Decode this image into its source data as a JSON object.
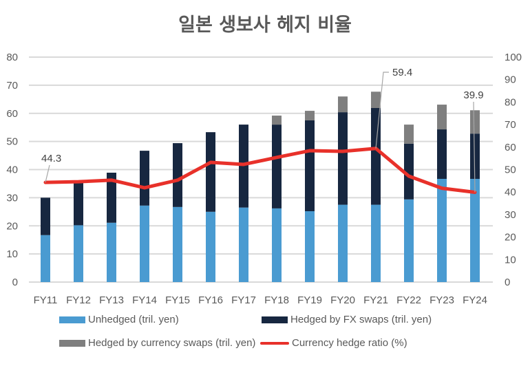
{
  "chart_data": {
    "type": "bar",
    "title": "일본 생보사 헤지 비율",
    "xlabel": "",
    "ylabel": "",
    "y2label": "",
    "ylim": [
      0,
      80
    ],
    "y2lim": [
      0,
      100
    ],
    "yticks": [
      0,
      10,
      20,
      30,
      40,
      50,
      60,
      70,
      80
    ],
    "y2ticks": [
      0,
      10,
      20,
      30,
      40,
      50,
      60,
      70,
      80,
      90,
      100
    ],
    "grid": true,
    "legend_position": "bottom",
    "categories": [
      "FY11",
      "FY12",
      "FY13",
      "FY14",
      "FY15",
      "FY16",
      "FY17",
      "FY18",
      "FY19",
      "FY20",
      "FY21",
      "FY22",
      "FY23",
      "FY24"
    ],
    "series": [
      {
        "name": "Unhedged (tril. yen)",
        "type": "bar",
        "stacked": true,
        "axis": "left",
        "color": "#4a9bd1",
        "values": [
          16.7,
          20.2,
          21.1,
          27.2,
          26.7,
          25.0,
          26.5,
          26.2,
          25.2,
          27.5,
          27.5,
          29.4,
          36.7,
          36.7
        ]
      },
      {
        "name": "Hedged by FX swaps (tril. yen)",
        "type": "bar",
        "stacked": true,
        "axis": "left",
        "color": "#172740",
        "values": [
          13.3,
          15.9,
          17.8,
          19.5,
          22.7,
          28.3,
          29.5,
          29.8,
          32.3,
          32.9,
          34.4,
          19.8,
          17.6,
          16.1
        ]
      },
      {
        "name": "Hedged by currency swaps (tril. yen)",
        "type": "bar",
        "stacked": true,
        "axis": "left",
        "color": "#7f7f7f",
        "values": [
          0,
          0,
          0,
          0,
          0,
          0,
          0,
          3.2,
          3.4,
          5.6,
          5.8,
          6.8,
          8.8,
          8.3
        ]
      },
      {
        "name": "Currency hedge ratio (%)",
        "type": "line",
        "axis": "right",
        "color": "#e8312a",
        "values": [
          44.3,
          44.6,
          45.3,
          41.9,
          45.3,
          53.2,
          52.3,
          55.4,
          58.4,
          58.1,
          59.4,
          47.1,
          41.7,
          39.9
        ]
      }
    ],
    "annotations": [
      {
        "category": "FY11",
        "series": "Currency hedge ratio (%)",
        "text": "44.3"
      },
      {
        "category": "FY21",
        "series": "Currency hedge ratio (%)",
        "text": "59.4"
      },
      {
        "category": "FY24",
        "series": "Currency hedge ratio (%)",
        "text": "39.9"
      }
    ]
  }
}
